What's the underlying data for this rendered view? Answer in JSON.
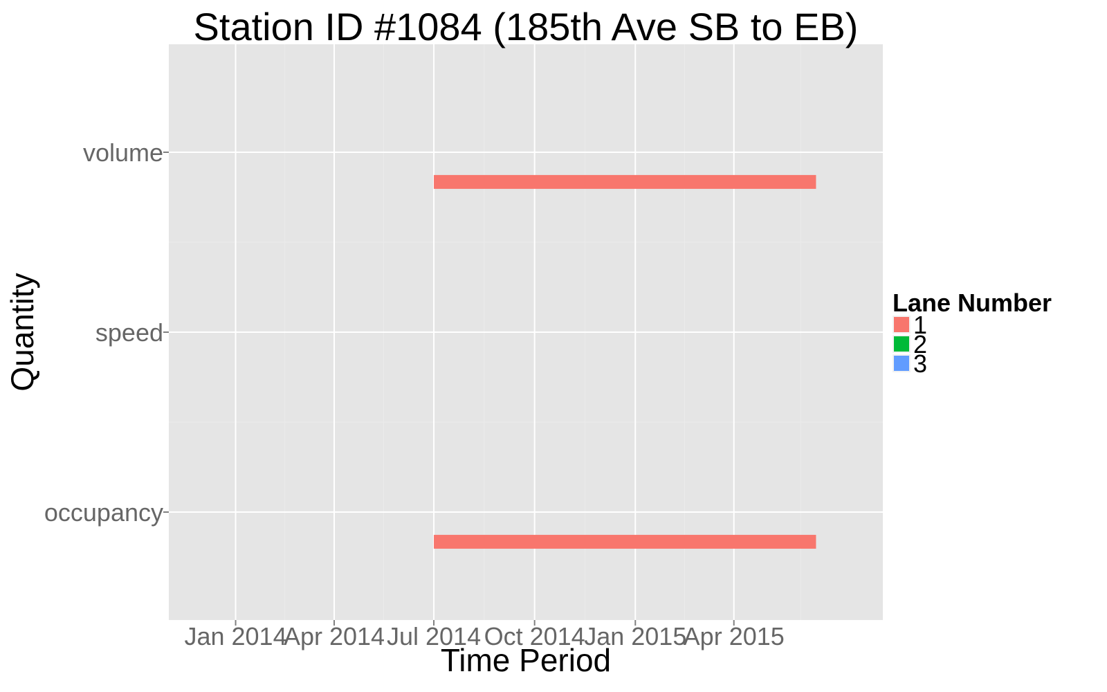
{
  "chart_data": {
    "type": "bar",
    "title": "Station ID #1084 (185th Ave SB to EB)",
    "xlabel": "Time Period",
    "ylabel": "Quantity",
    "x_ticks": [
      "Jan 2014",
      "Apr 2014",
      "Jul 2014",
      "Oct 2014",
      "Jan 2015",
      "Apr 2015"
    ],
    "x_range": [
      "2013-11-01",
      "2015-08-15"
    ],
    "categories": [
      "volume",
      "speed",
      "occupancy"
    ],
    "legend": {
      "title": "Lane Number",
      "placement": "right",
      "entries": [
        {
          "label": "1",
          "color": "#F8766D"
        },
        {
          "label": "2",
          "color": "#00BA38"
        },
        {
          "label": "3",
          "color": "#619CFF"
        }
      ]
    },
    "series": [
      {
        "name": "1",
        "color": "#F8766D",
        "segments": [
          {
            "category": "volume",
            "start": "2014-07-01",
            "end": "2015-06-15"
          },
          {
            "category": "occupancy",
            "start": "2014-07-01",
            "end": "2015-06-15"
          }
        ]
      },
      {
        "name": "2",
        "color": "#00BA38",
        "segments": []
      },
      {
        "name": "3",
        "color": "#619CFF",
        "segments": []
      }
    ],
    "grid": true,
    "panel_background": "#E5E5E5"
  }
}
